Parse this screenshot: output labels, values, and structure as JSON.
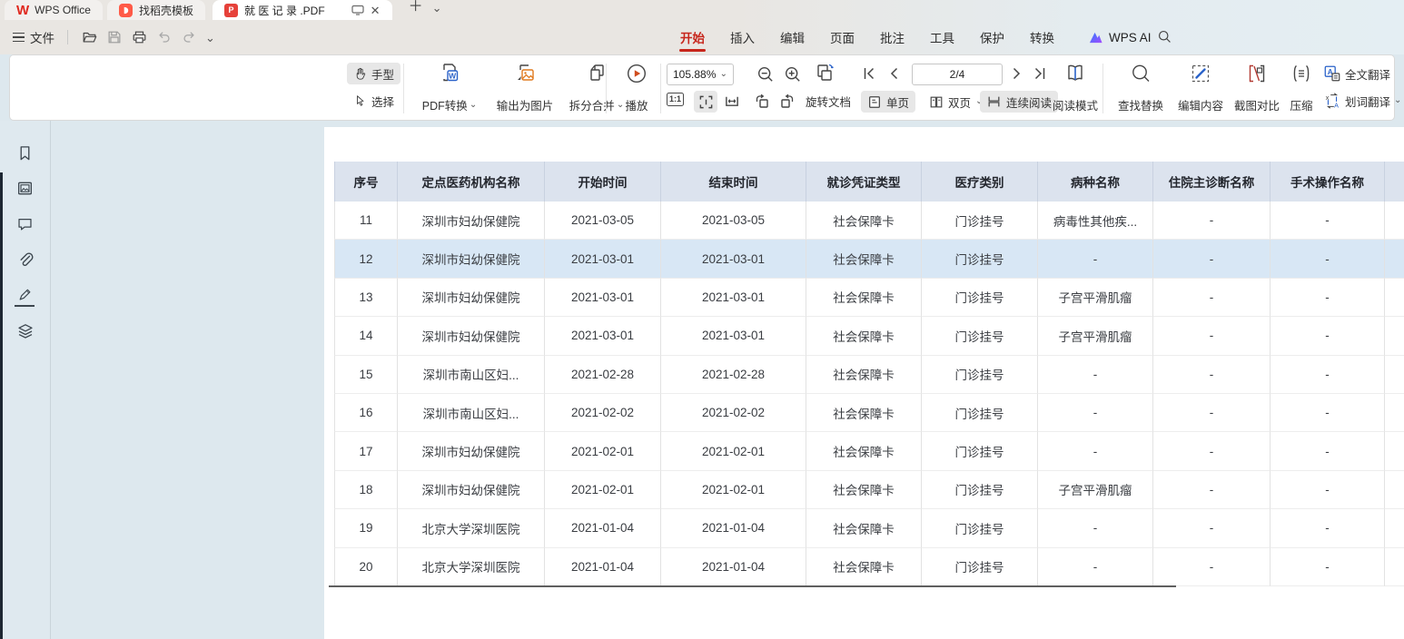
{
  "tabbar": {
    "tabs": [
      {
        "label": "WPS Office",
        "icon": "wps-logo"
      },
      {
        "label": "找稻壳模板",
        "icon": "docer-icon"
      },
      {
        "label": "就 医 记 录 .PDF",
        "icon": "pdf-icon",
        "active": true
      }
    ],
    "pdf_badge": "P",
    "close_glyph": "✕",
    "new_tab_glyph": "＋",
    "chevron_glyph": "⌄"
  },
  "menubar": {
    "file": "文件",
    "items": [
      "开始",
      "插入",
      "编辑",
      "页面",
      "批注",
      "工具",
      "保护",
      "转换"
    ],
    "active_item": "开始",
    "wps_ai": "WPS AI"
  },
  "toolbar": {
    "hand": "手型",
    "select": "选择",
    "pdf_convert": "PDF转换",
    "export_image": "输出为图片",
    "split_merge": "拆分合并",
    "play": "播放",
    "zoom_value": "105.88%",
    "page_indicator": "2/4",
    "ratio_label": "1:1",
    "rotate_doc": "旋转文档",
    "single_page": "单页",
    "double_page": "双页",
    "continuous_read": "连续阅读",
    "read_mode": "阅读模式",
    "find_replace": "查找替换",
    "edit_content": "编辑内容",
    "screenshot_compare": "截图对比",
    "compress": "压缩",
    "full_translate": "全文翻译",
    "word_translate": "划词翻译",
    "chevron_glyph": "⌄"
  },
  "colors": {
    "accent_red": "#c7261c",
    "accent_blue": "#2a62c9",
    "header_bg": "#dce3ee",
    "highlight_row_bg": "#d8e7f5",
    "canvas_bg": "#dde8ee"
  },
  "table": {
    "headers": [
      "序号",
      "定点医药机构名称",
      "开始时间",
      "结束时间",
      "就诊凭证类型",
      "医疗类别",
      "病种名称",
      "住院主诊断名称",
      "手术操作名称"
    ],
    "rows": [
      {
        "highlight": false,
        "cells": [
          "11",
          "深圳市妇幼保健院",
          "2021-03-05",
          "2021-03-05",
          "社会保障卡",
          "门诊挂号",
          "病毒性其他疾...",
          "-",
          "-"
        ]
      },
      {
        "highlight": true,
        "cells": [
          "12",
          "深圳市妇幼保健院",
          "2021-03-01",
          "2021-03-01",
          "社会保障卡",
          "门诊挂号",
          "-",
          "-",
          "-"
        ]
      },
      {
        "highlight": false,
        "cells": [
          "13",
          "深圳市妇幼保健院",
          "2021-03-01",
          "2021-03-01",
          "社会保障卡",
          "门诊挂号",
          "子宫平滑肌瘤",
          "-",
          "-"
        ]
      },
      {
        "highlight": false,
        "cells": [
          "14",
          "深圳市妇幼保健院",
          "2021-03-01",
          "2021-03-01",
          "社会保障卡",
          "门诊挂号",
          "子宫平滑肌瘤",
          "-",
          "-"
        ]
      },
      {
        "highlight": false,
        "cells": [
          "15",
          "深圳市南山区妇...",
          "2021-02-28",
          "2021-02-28",
          "社会保障卡",
          "门诊挂号",
          "-",
          "-",
          "-"
        ]
      },
      {
        "highlight": false,
        "cells": [
          "16",
          "深圳市南山区妇...",
          "2021-02-02",
          "2021-02-02",
          "社会保障卡",
          "门诊挂号",
          "-",
          "-",
          "-"
        ]
      },
      {
        "highlight": false,
        "cells": [
          "17",
          "深圳市妇幼保健院",
          "2021-02-01",
          "2021-02-01",
          "社会保障卡",
          "门诊挂号",
          "-",
          "-",
          "-"
        ]
      },
      {
        "highlight": false,
        "cells": [
          "18",
          "深圳市妇幼保健院",
          "2021-02-01",
          "2021-02-01",
          "社会保障卡",
          "门诊挂号",
          "子宫平滑肌瘤",
          "-",
          "-"
        ]
      },
      {
        "highlight": false,
        "cells": [
          "19",
          "北京大学深圳医院",
          "2021-01-04",
          "2021-01-04",
          "社会保障卡",
          "门诊挂号",
          "-",
          "-",
          "-"
        ]
      },
      {
        "highlight": false,
        "cells": [
          "20",
          "北京大学深圳医院",
          "2021-01-04",
          "2021-01-04",
          "社会保障卡",
          "门诊挂号",
          "-",
          "-",
          "-"
        ]
      }
    ]
  }
}
